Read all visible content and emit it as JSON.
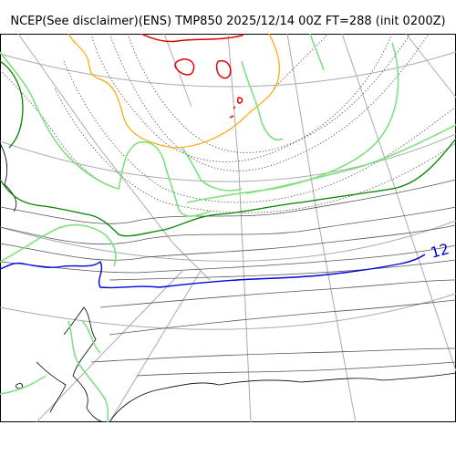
{
  "title": "NCEP(See disclaimer)(ENS) TMP850 2025/12/14 00Z FT=288 (init 0200Z)",
  "contour_label": "12",
  "colors": {
    "background": "#ffffff",
    "graticule": "#aaaaaa",
    "coastline": "#000000",
    "isotherm": "#555555",
    "green_contour": "#008000",
    "light_green_contour": "#80e080",
    "orange_contour": "#ffa500",
    "red_contour": "#e00000",
    "blue_contour": "#0000e0"
  }
}
